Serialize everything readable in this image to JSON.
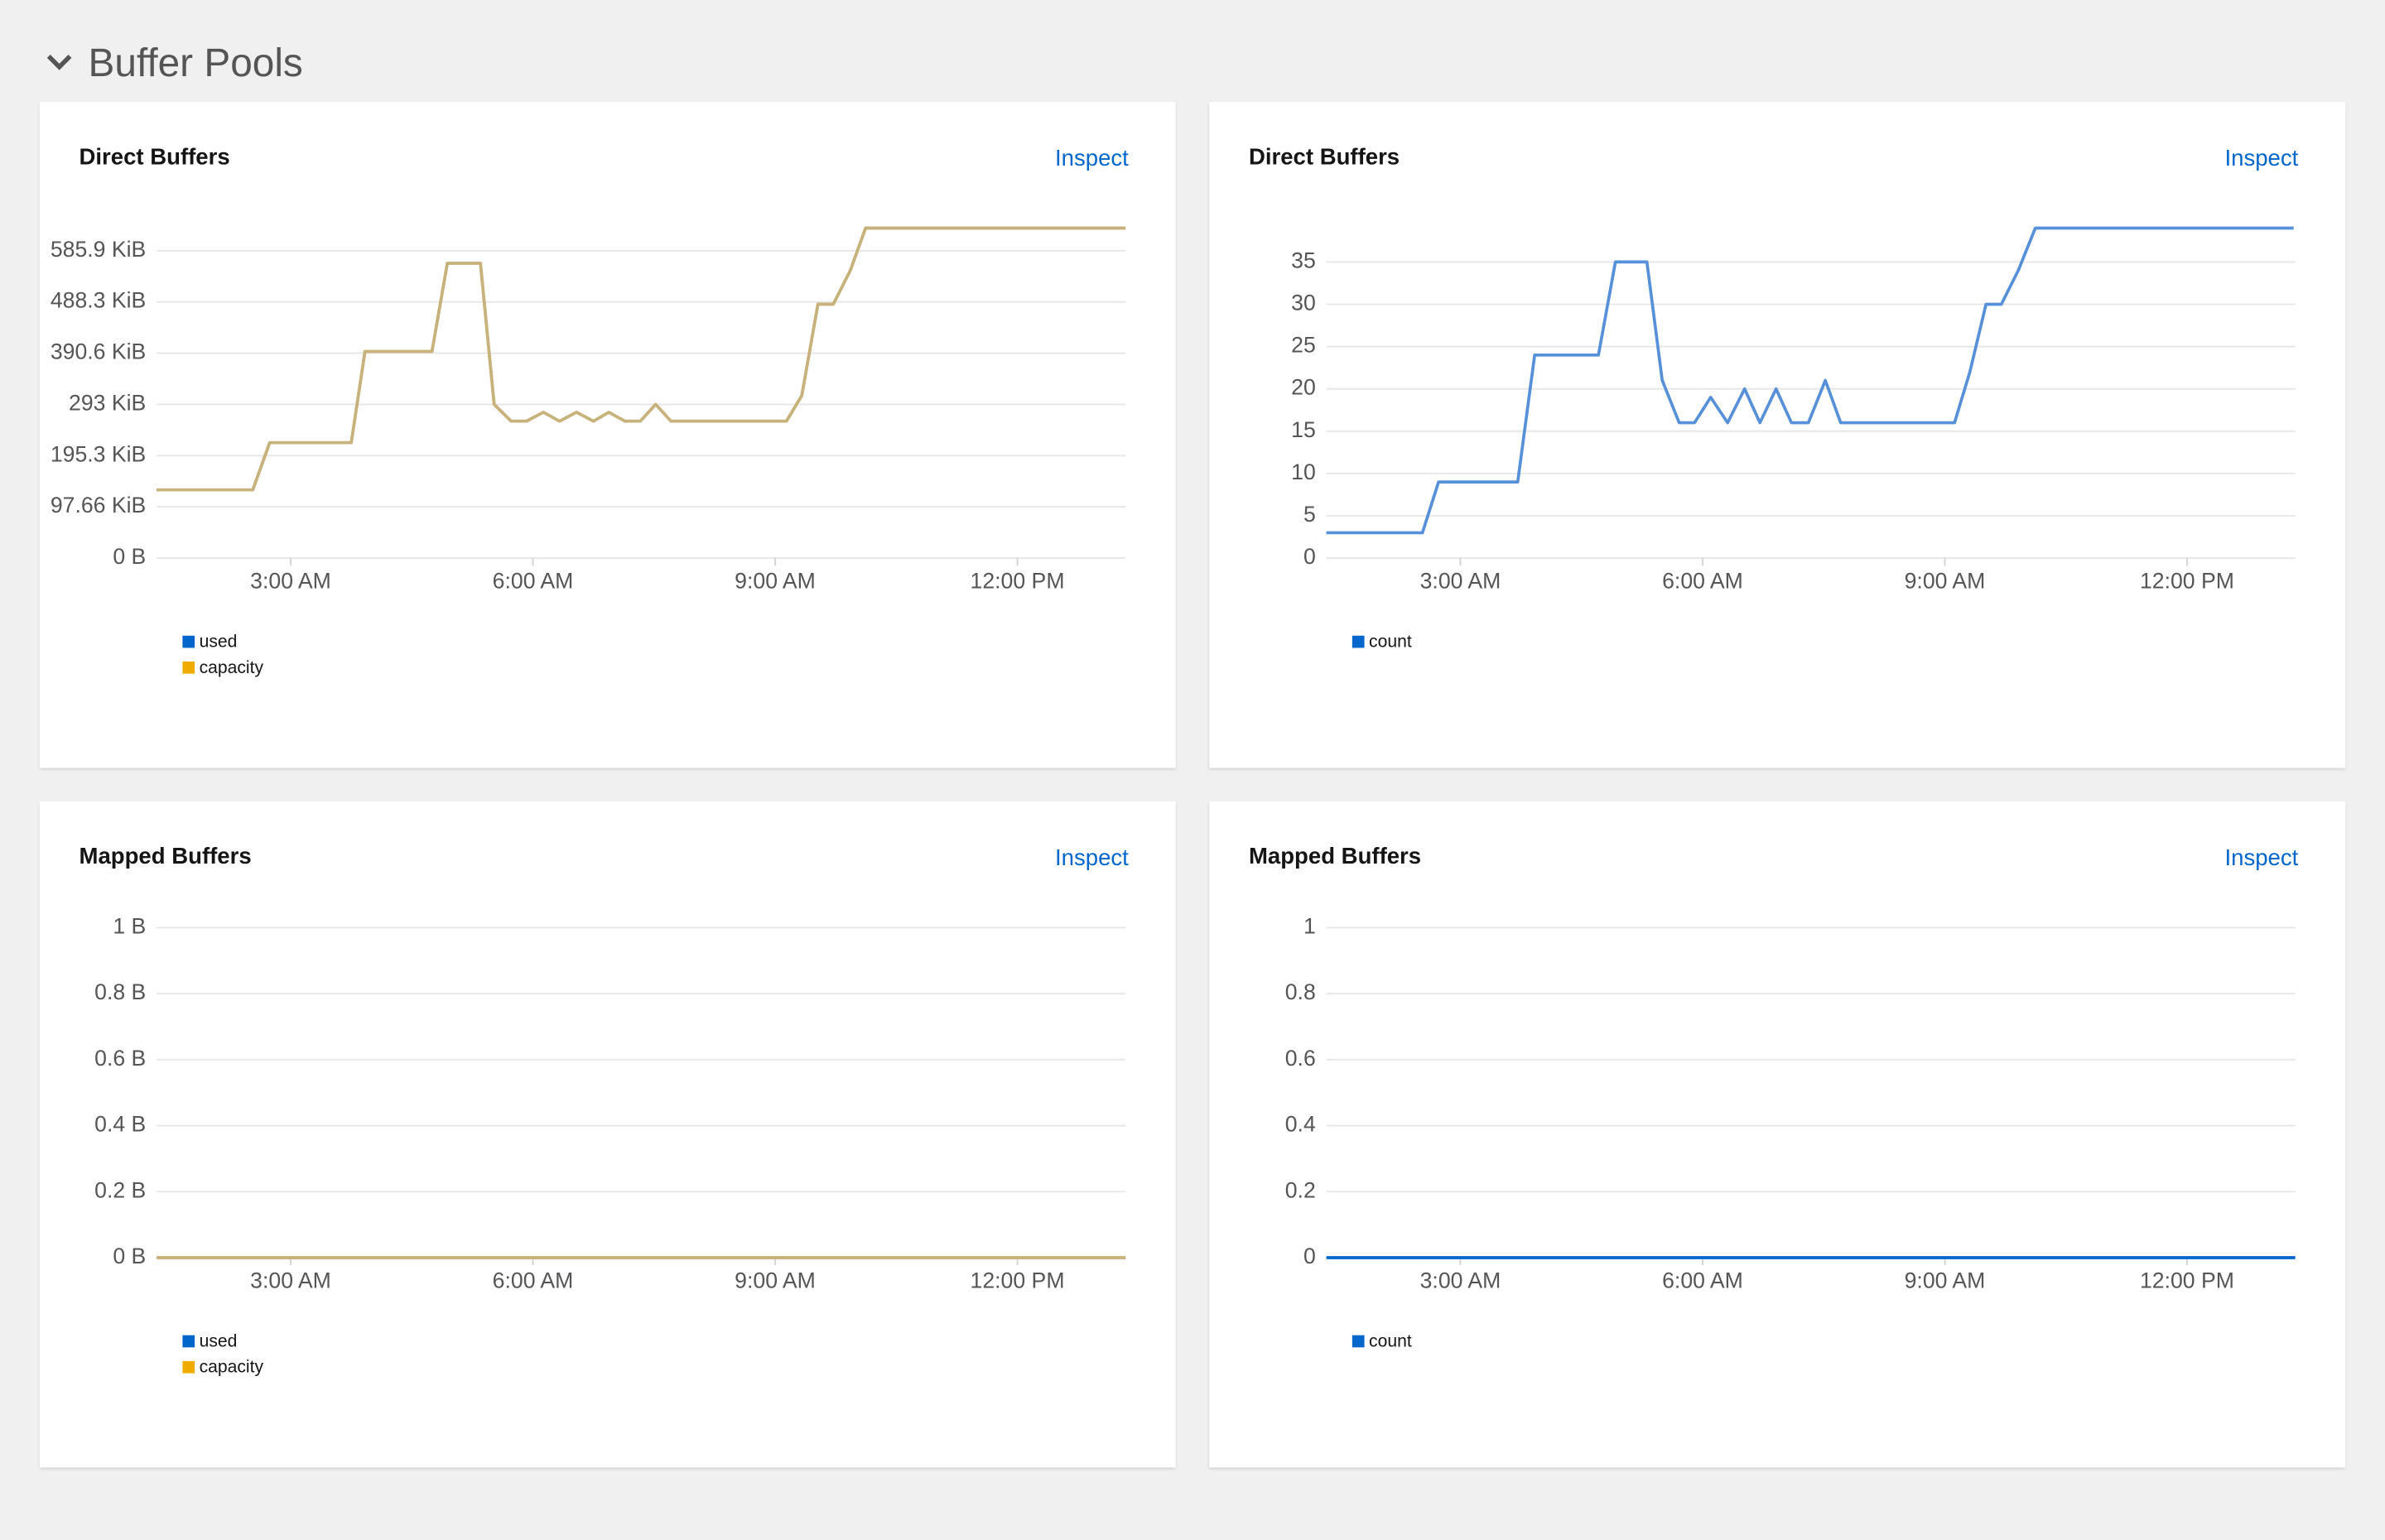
{
  "header": {
    "title": "Buffer Pools"
  },
  "panels": [
    {
      "title": "Direct Buffers",
      "action": "Inspect",
      "chart_data": {
        "type": "line",
        "line_color": "#c8b27c",
        "grid": true,
        "x": [
          1.34,
          2.53,
          2.74,
          3.75,
          3.92,
          4.75,
          4.94,
          5.35,
          5.52,
          5.73,
          5.92,
          6.13,
          6.33,
          6.54,
          6.75,
          6.94,
          7.14,
          7.33,
          7.52,
          7.71,
          9.14,
          9.33,
          9.53,
          9.72,
          9.93,
          10.12,
          13.34
        ],
        "series": [
          {
            "name": "used",
            "color": "#0066cc",
            "values": [
              130,
              130,
              220,
              220,
              394,
              394,
              562,
              562,
              293,
              261,
              261,
              278,
              261,
              278,
              261,
              278,
              261,
              261,
              293,
              261,
              261,
              310,
              484,
              484,
              548,
              629,
              629
            ]
          },
          {
            "name": "capacity",
            "color": "#f0ab00",
            "values": [
              130,
              130,
              220,
              220,
              394,
              394,
              562,
              562,
              293,
              261,
              261,
              278,
              261,
              278,
              261,
              278,
              261,
              261,
              293,
              261,
              261,
              310,
              484,
              484,
              548,
              629,
              629
            ]
          }
        ],
        "xlim": [
          1.34,
          13.34
        ],
        "xticks": [
          {
            "value": 3,
            "label": "3:00 AM"
          },
          {
            "value": 6,
            "label": "6:00 AM"
          },
          {
            "value": 9,
            "label": "9:00 AM"
          },
          {
            "value": 12,
            "label": "12:00 PM"
          }
        ],
        "ylim": [
          0,
          629
        ],
        "yticks": [
          {
            "value": 0,
            "label": "0 B"
          },
          {
            "value": 97.66,
            "label": "97.66 KiB"
          },
          {
            "value": 195.3,
            "label": "195.3 KiB"
          },
          {
            "value": 293,
            "label": "293 KiB"
          },
          {
            "value": 390.6,
            "label": "390.6 KiB"
          },
          {
            "value": 488.3,
            "label": "488.3 KiB"
          },
          {
            "value": 585.9,
            "label": "585.9 KiB"
          }
        ]
      }
    },
    {
      "title": "Direct Buffers",
      "action": "Inspect",
      "chart_data": {
        "type": "line",
        "line_color": "#5590d9",
        "grid": true,
        "x": [
          1.34,
          2.53,
          2.73,
          3.71,
          3.92,
          4.71,
          4.92,
          5.31,
          5.5,
          5.71,
          5.9,
          6.1,
          6.31,
          6.52,
          6.71,
          6.91,
          7.1,
          7.31,
          7.52,
          7.71,
          9.12,
          9.31,
          9.51,
          9.7,
          9.91,
          10.12,
          13.32
        ],
        "series": [
          {
            "name": "count",
            "color": "#0066cc",
            "values": [
              3,
              3,
              9,
              9,
              24,
              24,
              35,
              35,
              21,
              16,
              16,
              19,
              16,
              20,
              16,
              20,
              16,
              16,
              21,
              16,
              16,
              22,
              30,
              30,
              34,
              39,
              39
            ]
          }
        ],
        "xlim": [
          1.34,
          13.34
        ],
        "xticks": [
          {
            "value": 3,
            "label": "3:00 AM"
          },
          {
            "value": 6,
            "label": "6:00 AM"
          },
          {
            "value": 9,
            "label": "9:00 AM"
          },
          {
            "value": 12,
            "label": "12:00 PM"
          }
        ],
        "ylim": [
          0,
          39
        ],
        "yticks": [
          0,
          5,
          10,
          15,
          20,
          25,
          30,
          35
        ]
      }
    },
    {
      "title": "Mapped Buffers",
      "action": "Inspect",
      "chart_data": {
        "type": "line",
        "line_color": "#c8b27c",
        "grid": true,
        "x": [
          1.34,
          13.34
        ],
        "series": [
          {
            "name": "used",
            "color": "#0066cc",
            "values": [
              0,
              0
            ]
          },
          {
            "name": "capacity",
            "color": "#f0ab00",
            "values": [
              0,
              0
            ]
          }
        ],
        "xlim": [
          1.34,
          13.34
        ],
        "xticks": [
          {
            "value": 3,
            "label": "3:00 AM"
          },
          {
            "value": 6,
            "label": "6:00 AM"
          },
          {
            "value": 9,
            "label": "9:00 AM"
          },
          {
            "value": 12,
            "label": "12:00 PM"
          }
        ],
        "ylim": [
          0,
          1
        ],
        "yticks": [
          {
            "value": 0,
            "label": "0 B"
          },
          {
            "value": 0.2,
            "label": "0.2 B"
          },
          {
            "value": 0.4,
            "label": "0.4 B"
          },
          {
            "value": 0.6,
            "label": "0.6 B"
          },
          {
            "value": 0.8,
            "label": "0.8 B"
          },
          {
            "value": 1,
            "label": "1 B"
          }
        ]
      }
    },
    {
      "title": "Mapped Buffers",
      "action": "Inspect",
      "chart_data": {
        "type": "line",
        "line_color": "#0066cc",
        "grid": true,
        "x": [
          1.34,
          13.34
        ],
        "series": [
          {
            "name": "count",
            "color": "#0066cc",
            "values": [
              0,
              0
            ]
          }
        ],
        "xlim": [
          1.34,
          13.34
        ],
        "xticks": [
          {
            "value": 3,
            "label": "3:00 AM"
          },
          {
            "value": 6,
            "label": "6:00 AM"
          },
          {
            "value": 9,
            "label": "9:00 AM"
          },
          {
            "value": 12,
            "label": "12:00 PM"
          }
        ],
        "ylim": [
          0,
          1
        ],
        "yticks": [
          0,
          0.2,
          0.4,
          0.6,
          0.8,
          1
        ]
      }
    }
  ]
}
